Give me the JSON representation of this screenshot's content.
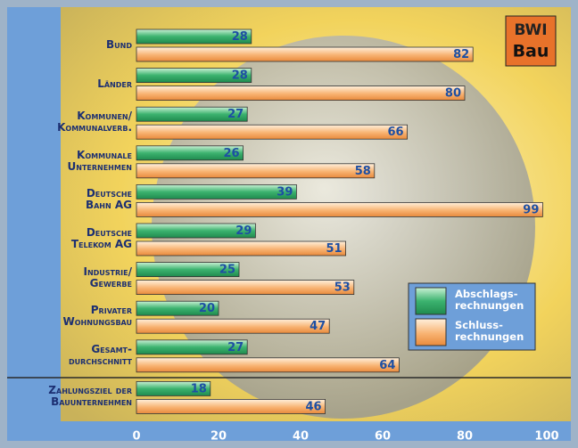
{
  "chart_data": {
    "type": "bar",
    "orientation": "horizontal",
    "logo": [
      "BWI",
      "Bau"
    ],
    "categories": [
      "Bund",
      "Länder",
      "Kommunen/\nKommunalverb.",
      "Kommunale\nUnternehmen",
      "Deutsche\nBahn AG",
      "Deutsche\nTelekom AG",
      "Industrie/\nGewerbe",
      "Privater\nWohnungsbau",
      "Gesamt-\ndurchschnitt",
      "Zahlungsziel der\nBauunternehmen"
    ],
    "series": [
      {
        "name": "Abschlags-\nrechnungen",
        "color": "#2fa866",
        "values": [
          28,
          28,
          27,
          26,
          39,
          29,
          25,
          20,
          27,
          18
        ]
      },
      {
        "name": "Schluss-\nrechnungen",
        "color": "#f7a45c",
        "values": [
          82,
          80,
          66,
          58,
          99,
          51,
          53,
          47,
          64,
          46
        ]
      }
    ],
    "xlim": [
      0,
      100
    ],
    "xticks": [
      0,
      20,
      40,
      60,
      80,
      100
    ],
    "legend": "lower-right"
  }
}
